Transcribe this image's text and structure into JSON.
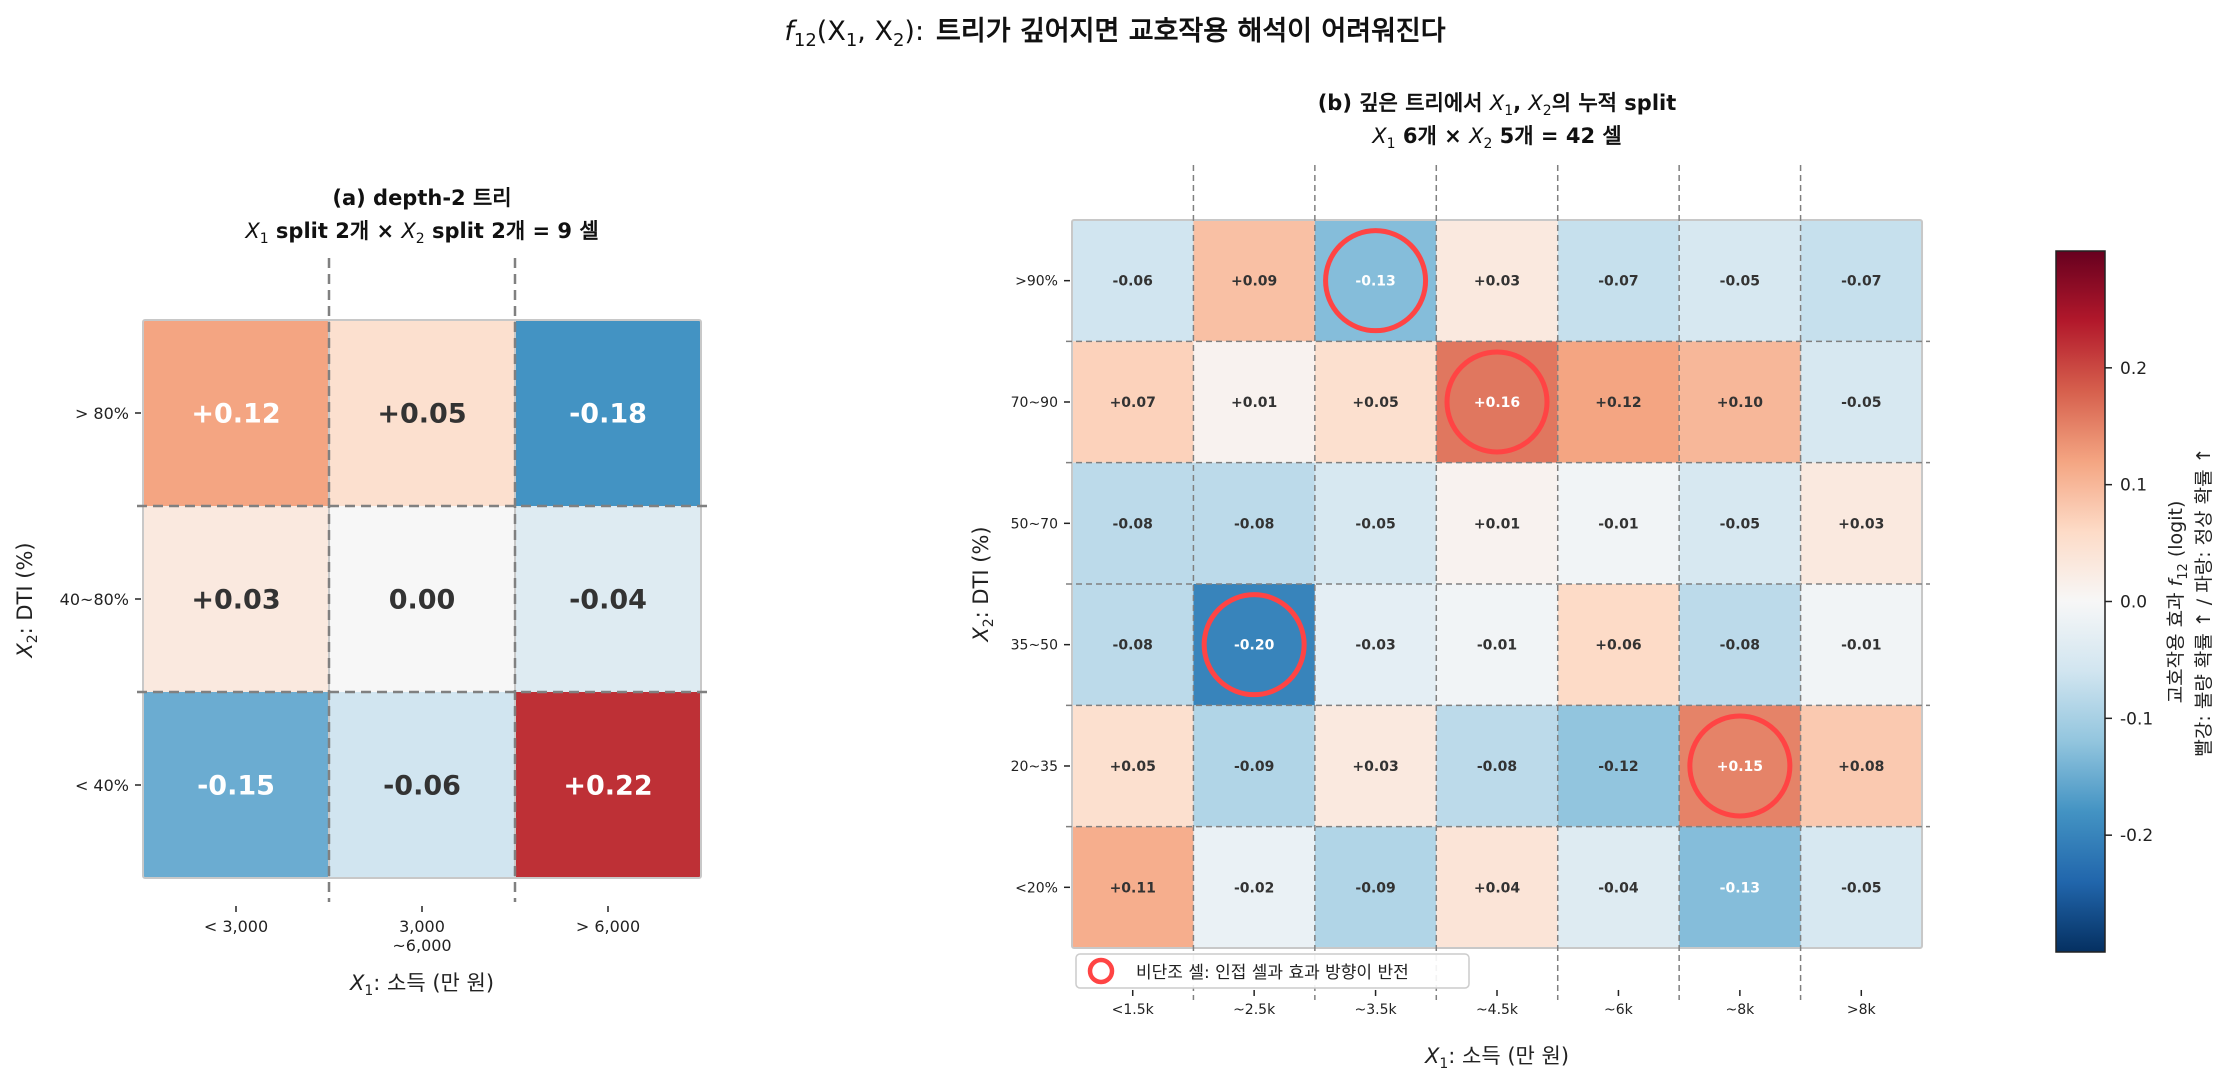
{
  "suptitle": {
    "func_name": "f",
    "func_sub": "12",
    "args": "(X",
    "arg1_sub": "1",
    "sep": ", X",
    "arg2_sub": "2",
    "close": "):",
    "text": "트리가 깊어지면 교호작용 해석이 어려워진다"
  },
  "chart_data": [
    {
      "type": "heatmap",
      "panel": "a",
      "title_line1": "(a)  depth-2 트리",
      "title_line2": {
        "var1": "X",
        "var1_sub": "1",
        "part1": " split 2개 × ",
        "var2": "X",
        "var2_sub": "2",
        "part2": " split 2개 = 9 셀"
      },
      "xlabel": {
        "var": "X",
        "sub": "1",
        "text": ": 소득 (만 원)"
      },
      "ylabel": {
        "var": "X",
        "sub": "2",
        "text": ": DTI (%)"
      },
      "x_categories": [
        [
          "< 3,000"
        ],
        [
          "3,000",
          "~6,000"
        ],
        [
          "> 6,000"
        ]
      ],
      "y_categories": [
        "> 80%",
        "40~80%",
        "< 40%"
      ],
      "values": [
        [
          0.12,
          0.05,
          -0.18
        ],
        [
          0.03,
          0.0,
          -0.04
        ],
        [
          -0.15,
          -0.06,
          0.22
        ]
      ],
      "labels": [
        [
          "+0.12",
          "+0.05",
          "-0.18"
        ],
        [
          "+0.03",
          "0.00",
          "-0.04"
        ],
        [
          "-0.15",
          "-0.06",
          "+0.22"
        ]
      ]
    },
    {
      "type": "heatmap",
      "panel": "b",
      "title_line1": {
        "prefix": "(b)  깊은 트리에서 ",
        "var1": "X",
        "var1_sub": "1",
        "mid": ", ",
        "var2": "X",
        "var2_sub": "2",
        "suffix": "의 누적 split"
      },
      "title_line2": {
        "var1": "X",
        "var1_sub": "1",
        "part1": " 6개 × ",
        "var2": "X",
        "var2_sub": "2",
        "part2": " 5개 = 42 셀"
      },
      "xlabel": {
        "var": "X",
        "sub": "1",
        "text": ": 소득 (만 원)"
      },
      "ylabel": {
        "var": "X",
        "sub": "2",
        "text": ": DTI (%)"
      },
      "x_categories": [
        "<1.5k",
        "~2.5k",
        "~3.5k",
        "~4.5k",
        "~6k",
        "~8k",
        ">8k"
      ],
      "y_categories": [
        ">90%",
        "70~90",
        "50~70",
        "35~50",
        "20~35",
        "<20%"
      ],
      "values": [
        [
          -0.06,
          0.09,
          -0.13,
          0.03,
          -0.07,
          -0.05,
          -0.07
        ],
        [
          0.07,
          0.01,
          0.05,
          0.16,
          0.12,
          0.1,
          -0.05
        ],
        [
          -0.08,
          -0.08,
          -0.05,
          0.01,
          -0.01,
          -0.05,
          0.03
        ],
        [
          -0.08,
          -0.2,
          -0.03,
          -0.01,
          0.06,
          -0.08,
          -0.01
        ],
        [
          0.05,
          -0.09,
          0.03,
          -0.08,
          -0.12,
          0.15,
          0.08
        ],
        [
          0.11,
          -0.02,
          -0.09,
          0.04,
          -0.04,
          -0.13,
          -0.05
        ]
      ],
      "labels": [
        [
          "-0.06",
          "+0.09",
          "-0.13",
          "+0.03",
          "-0.07",
          "-0.05",
          "-0.07"
        ],
        [
          "+0.07",
          "+0.01",
          "+0.05",
          "+0.16",
          "+0.12",
          "+0.10",
          "-0.05"
        ],
        [
          "-0.08",
          "-0.08",
          "-0.05",
          "+0.01",
          "-0.01",
          "-0.05",
          "+0.03"
        ],
        [
          "-0.08",
          "-0.20",
          "-0.03",
          "-0.01",
          "+0.06",
          "-0.08",
          "-0.01"
        ],
        [
          "+0.05",
          "-0.09",
          "+0.03",
          "-0.08",
          "-0.12",
          "+0.15",
          "+0.08"
        ],
        [
          "+0.11",
          "-0.02",
          "-0.09",
          "+0.04",
          "-0.04",
          "-0.13",
          "-0.05"
        ]
      ],
      "highlighted_cells": [
        [
          0,
          2
        ],
        [
          1,
          3
        ],
        [
          3,
          1
        ],
        [
          4,
          5
        ]
      ],
      "legend": {
        "label": "비단조 셀: 인접 셀과 효과 방향이 반전",
        "placement": "lower-left"
      }
    }
  ],
  "colorbar": {
    "colormap": "RdBu_r",
    "range": [
      -0.3,
      0.3
    ],
    "ticks": [
      "0.2",
      "0.1",
      "0.0",
      "-0.1",
      "-0.2"
    ],
    "tick_values": [
      0.2,
      0.1,
      0.0,
      -0.1,
      -0.2
    ],
    "label_line1": {
      "prefix": "교호작용 효과 ",
      "var": "f",
      "sub": "12",
      "suffix": " (logit)"
    },
    "label_line2": "빨강: 불량 확률 ↑  /  파랑: 정상 확률 ↑"
  },
  "colors": {
    "highlight": "#ff4444",
    "dashed": "#808080",
    "text_dark": "#333333",
    "text_light": "#ffffff"
  }
}
